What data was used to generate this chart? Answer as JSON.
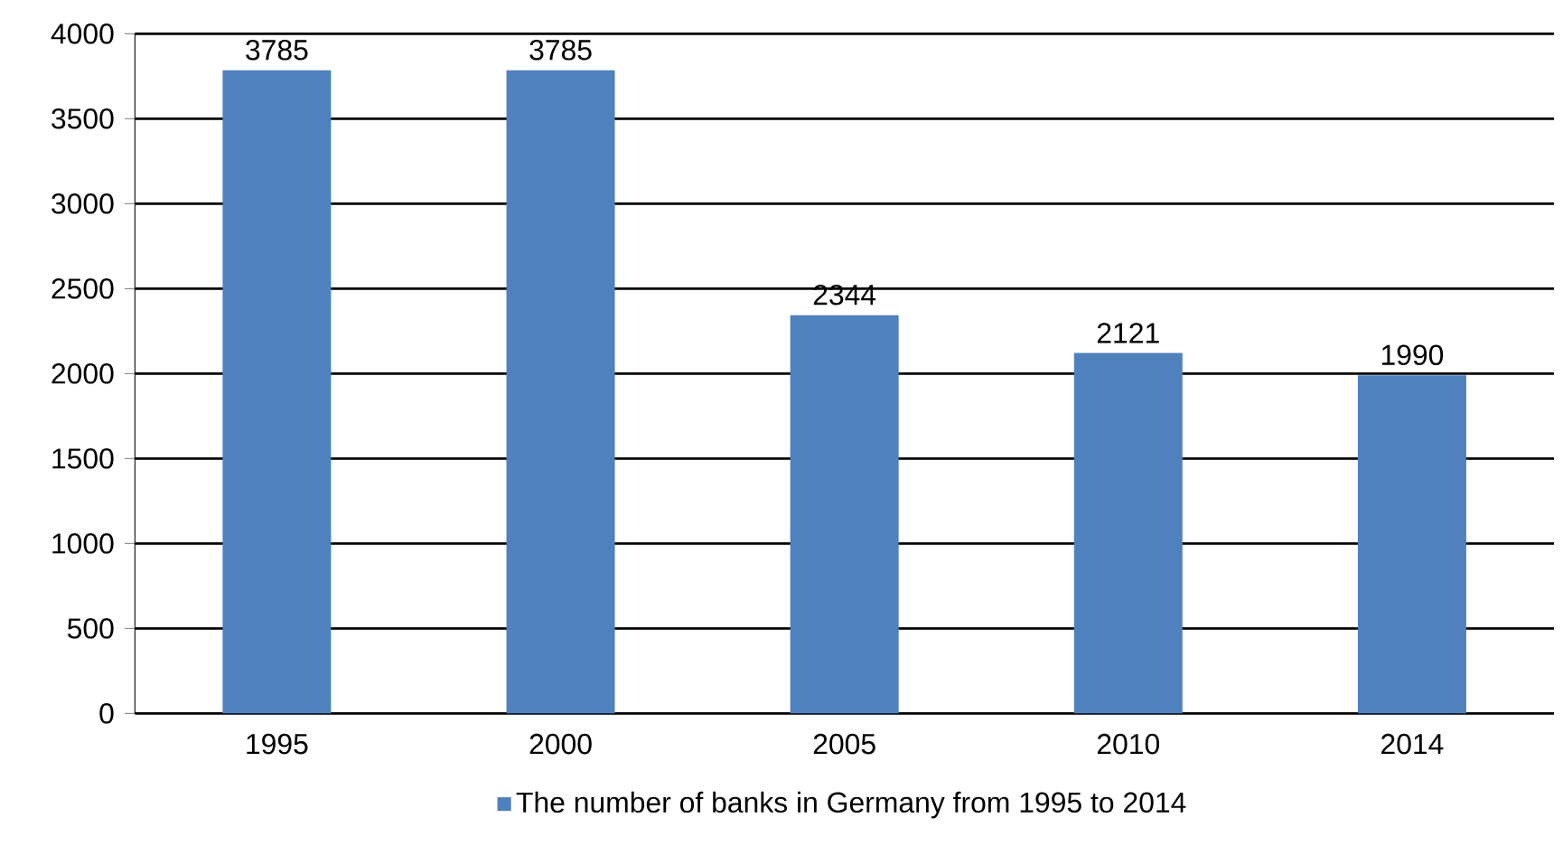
{
  "chart_data": {
    "type": "bar",
    "categories": [
      "1995",
      "2000",
      "2005",
      "2010",
      "2014"
    ],
    "series": [
      {
        "name": "The number of banks in Germany from 1995 to 2014",
        "color": "#4f81bd",
        "values": [
          3785,
          3785,
          2344,
          2121,
          1990
        ]
      }
    ],
    "ylim": [
      0,
      4000
    ],
    "yticks": [
      0,
      500,
      1000,
      1500,
      2000,
      2500,
      3000,
      3500,
      4000
    ],
    "grid": "y",
    "legend": "bottom",
    "data_labels": true
  }
}
